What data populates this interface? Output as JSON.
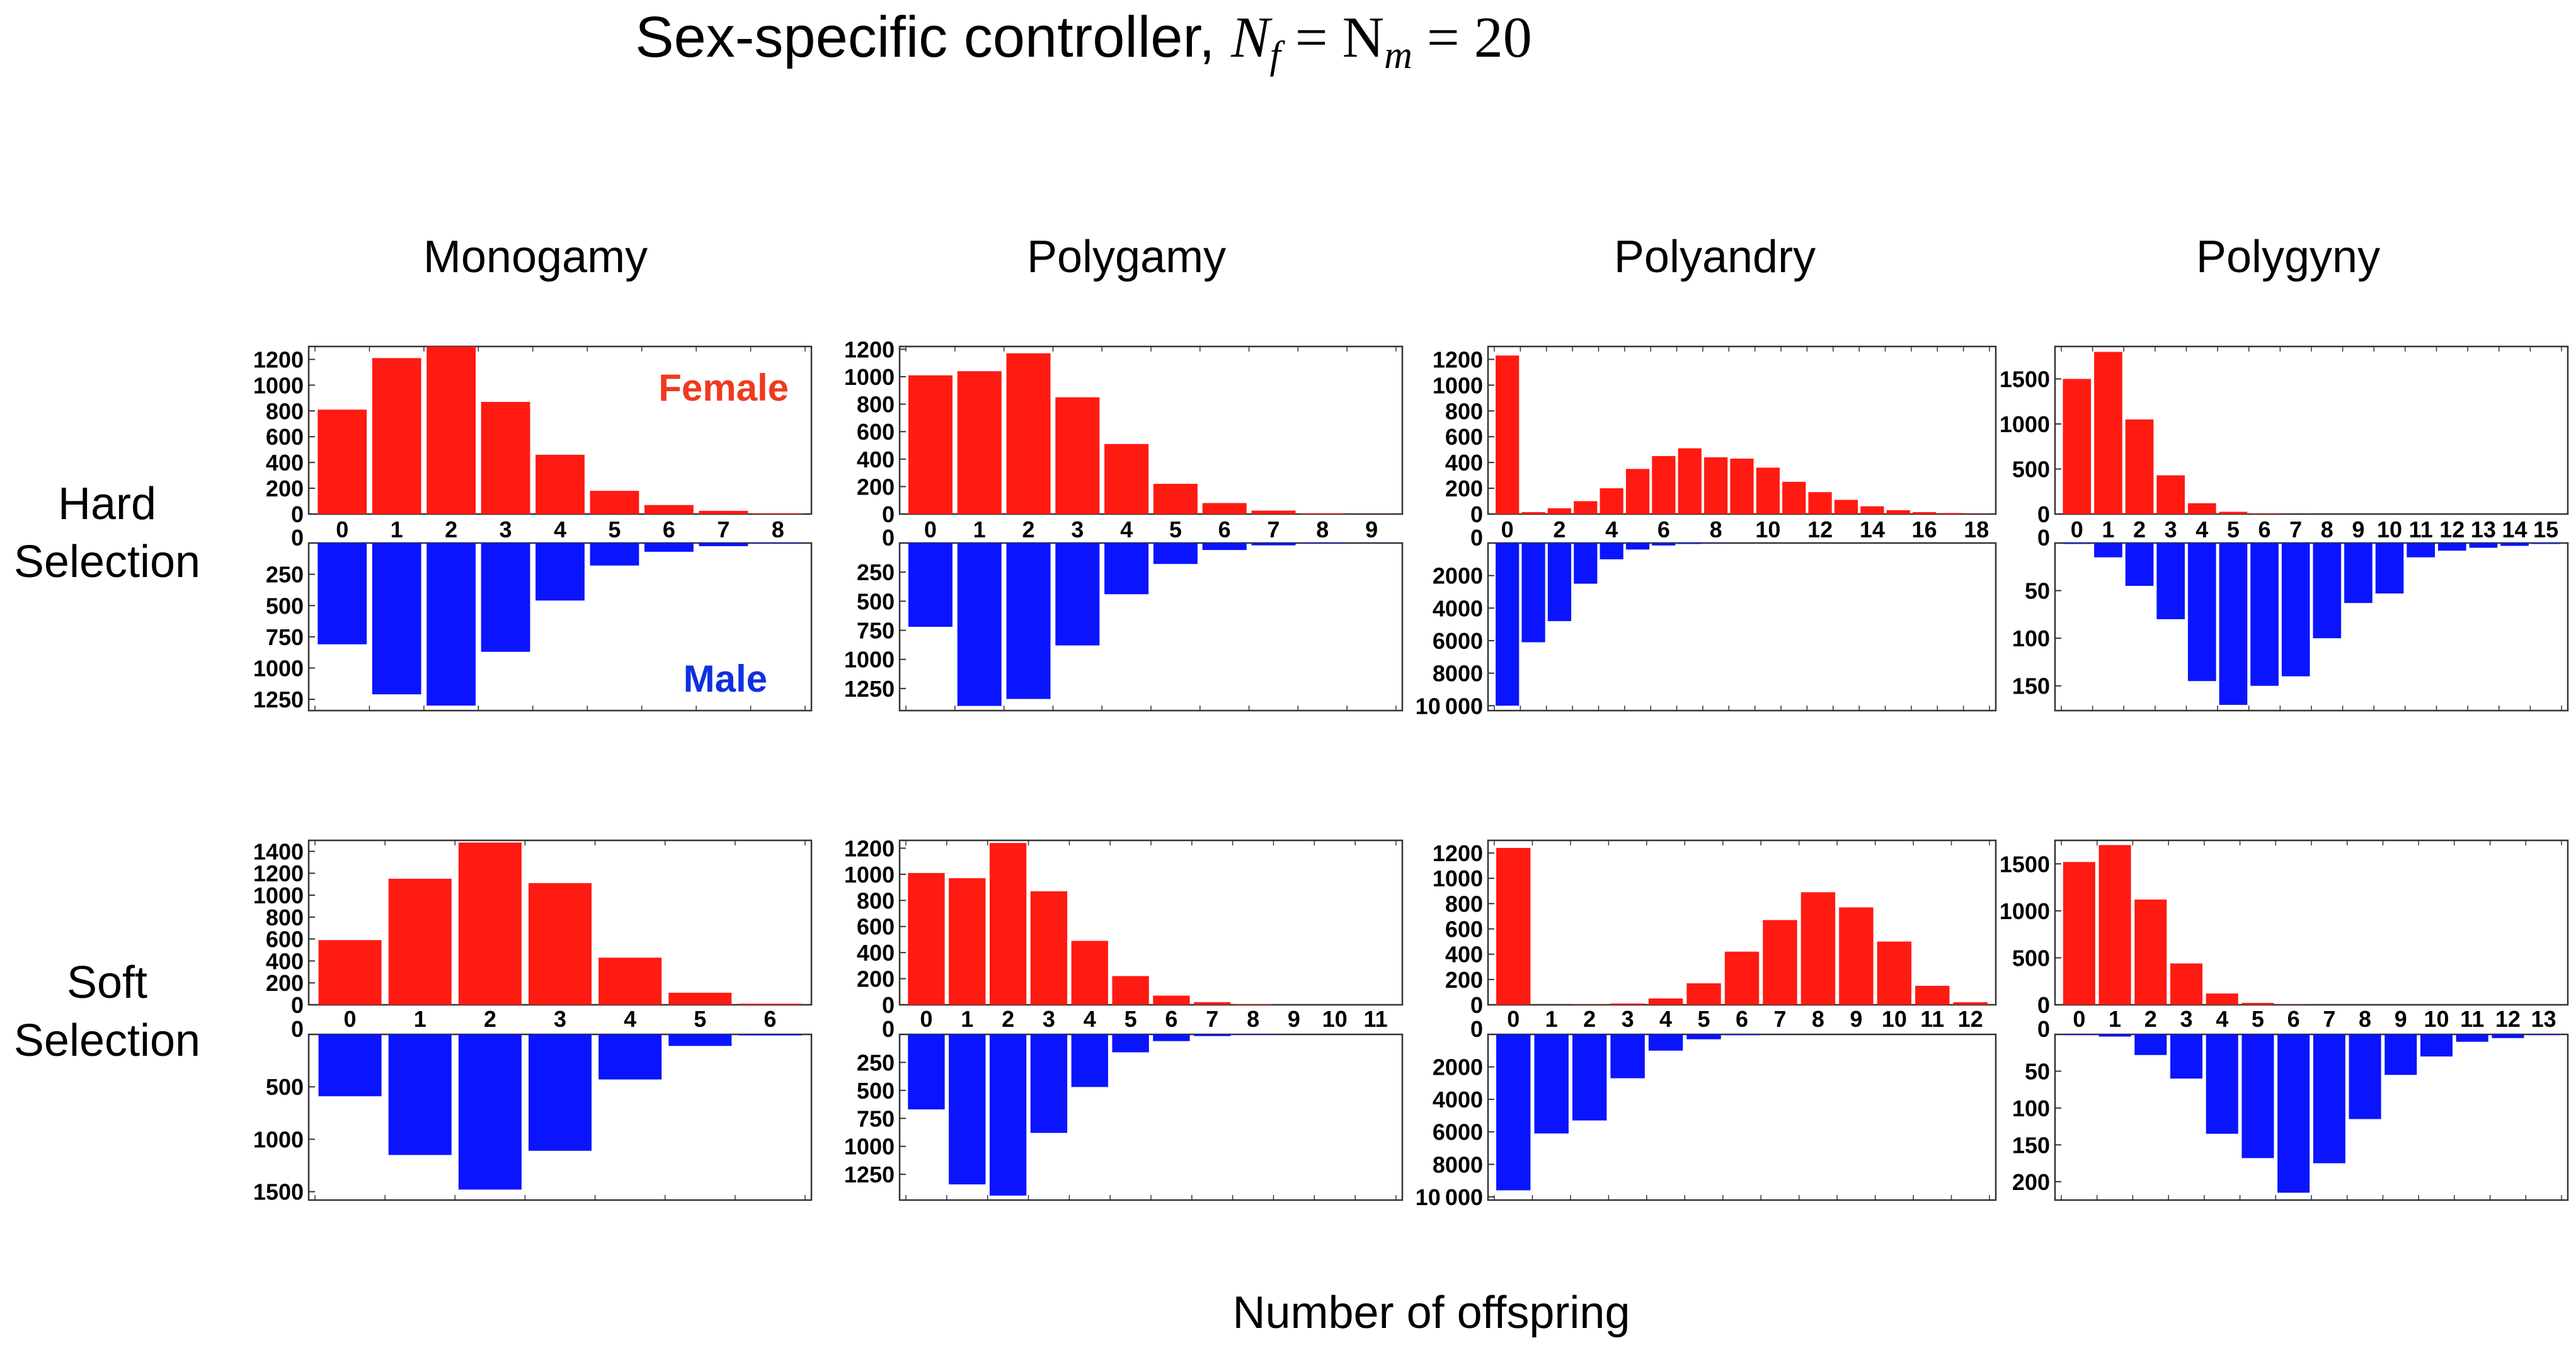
{
  "title": {
    "text": "Sex-specific controller, ",
    "math_nf": "N",
    "sub_f": "f",
    "math_rest": " = N",
    "sub_m": "m",
    "math_end": " = 20"
  },
  "columns": [
    "Monogamy",
    "Polygamy",
    "Polyandry",
    "Polygyny"
  ],
  "rows": [
    {
      "line1": "Hard",
      "line2": "Selection"
    },
    {
      "line1": "Soft",
      "line2": "Selection"
    }
  ],
  "xlabel": "Number of offspring",
  "legend": {
    "female": "Female",
    "male": "Male"
  },
  "colors": {
    "female": "#ff1a12",
    "male": "#0a14ff",
    "female_text": "#f03a1e",
    "male_text": "#1030e0"
  },
  "chart_data": [
    {
      "type": "bar",
      "selection": "Hard Selection",
      "system": "Monogamy",
      "female": {
        "categories": [
          0,
          1,
          2,
          3,
          4,
          5,
          6,
          7,
          8
        ],
        "values": [
          810,
          1210,
          1300,
          870,
          460,
          180,
          70,
          25,
          5
        ],
        "ylim": [
          0,
          1300
        ],
        "yticks": [
          0,
          200,
          400,
          600,
          800,
          1000,
          1200
        ],
        "xticks": [
          0,
          1,
          2,
          3,
          4,
          5,
          6,
          7,
          8
        ]
      },
      "male": {
        "categories": [
          0,
          1,
          2,
          3,
          4,
          5,
          6,
          7,
          8
        ],
        "values": [
          810,
          1210,
          1300,
          870,
          460,
          180,
          70,
          25,
          5
        ],
        "ylim": [
          0,
          1340
        ],
        "yticks": [
          0,
          250,
          500,
          750,
          1000,
          1250
        ],
        "xticks": []
      }
    },
    {
      "type": "bar",
      "selection": "Hard Selection",
      "system": "Polygamy",
      "female": {
        "categories": [
          0,
          1,
          2,
          3,
          4,
          5,
          6,
          7,
          8,
          9
        ],
        "values": [
          1010,
          1040,
          1170,
          850,
          510,
          220,
          80,
          25,
          5,
          1
        ],
        "ylim": [
          0,
          1220
        ],
        "yticks": [
          0,
          200,
          400,
          600,
          800,
          1000,
          1200
        ],
        "xticks": [
          0,
          1,
          2,
          3,
          4,
          5,
          6,
          7,
          8,
          9
        ]
      },
      "male": {
        "categories": [
          0,
          1,
          2,
          3,
          4,
          5,
          6,
          7,
          8,
          9
        ],
        "values": [
          720,
          1400,
          1340,
          880,
          440,
          180,
          60,
          20,
          5,
          1
        ],
        "ylim": [
          0,
          1440
        ],
        "yticks": [
          0,
          250,
          500,
          750,
          1000,
          1250
        ],
        "xticks": []
      }
    },
    {
      "type": "bar",
      "selection": "Hard Selection",
      "system": "Polyandry",
      "female": {
        "categories": [
          0,
          1,
          2,
          3,
          4,
          5,
          6,
          7,
          8,
          9,
          10,
          11,
          12,
          13,
          14,
          15,
          16,
          17,
          18
        ],
        "values": [
          1230,
          15,
          45,
          100,
          200,
          350,
          450,
          510,
          440,
          430,
          360,
          250,
          170,
          110,
          60,
          30,
          15,
          8,
          2
        ],
        "ylim": [
          0,
          1300
        ],
        "yticks": [
          0,
          200,
          400,
          600,
          800,
          1000,
          1200
        ],
        "xticks": [
          0,
          2,
          4,
          6,
          8,
          10,
          12,
          14,
          16,
          18
        ]
      },
      "male": {
        "categories": [
          0,
          1,
          2,
          3,
          4,
          5,
          6,
          7,
          8,
          9,
          10,
          11,
          12,
          13,
          14,
          15,
          16,
          17,
          18
        ],
        "values": [
          10000,
          6100,
          4800,
          2500,
          1000,
          400,
          150,
          60,
          20,
          5,
          1,
          0,
          0,
          0,
          0,
          0,
          0,
          0,
          0
        ],
        "ylim": [
          0,
          10300
        ],
        "yticks": [
          0,
          2000,
          4000,
          6000,
          8000,
          10000
        ],
        "xticks": []
      }
    },
    {
      "type": "bar",
      "selection": "Hard Selection",
      "system": "Polygyny",
      "female": {
        "categories": [
          0,
          1,
          2,
          3,
          4,
          5,
          6,
          7,
          8,
          9,
          10,
          11,
          12,
          13,
          14,
          15
        ],
        "values": [
          1500,
          1800,
          1050,
          430,
          120,
          25,
          5,
          1,
          0,
          0,
          0,
          0,
          0,
          0,
          0,
          0
        ],
        "ylim": [
          0,
          1860
        ],
        "yticks": [
          0,
          500,
          1000,
          1500
        ],
        "xticks": [
          0,
          1,
          2,
          3,
          4,
          5,
          6,
          7,
          8,
          9,
          10,
          11,
          12,
          13,
          14,
          15
        ]
      },
      "male": {
        "categories": [
          0,
          1,
          2,
          3,
          4,
          5,
          6,
          7,
          8,
          9,
          10,
          11,
          12,
          13,
          14,
          15
        ],
        "values": [
          1,
          15,
          45,
          80,
          145,
          170,
          150,
          140,
          100,
          63,
          53,
          15,
          8,
          5,
          3,
          1
        ],
        "ylim": [
          0,
          176
        ],
        "yticks": [
          0,
          50,
          100,
          150
        ],
        "xticks": []
      }
    },
    {
      "type": "bar",
      "selection": "Soft Selection",
      "system": "Monogamy",
      "female": {
        "categories": [
          0,
          1,
          2,
          3,
          4,
          5,
          6
        ],
        "values": [
          590,
          1150,
          1480,
          1110,
          430,
          110,
          10
        ],
        "ylim": [
          0,
          1500
        ],
        "yticks": [
          0,
          200,
          400,
          600,
          800,
          1000,
          1200,
          1400
        ],
        "xticks": [
          0,
          1,
          2,
          3,
          4,
          5,
          6
        ]
      },
      "male": {
        "categories": [
          0,
          1,
          2,
          3,
          4,
          5,
          6
        ],
        "values": [
          590,
          1150,
          1480,
          1110,
          430,
          110,
          10
        ],
        "ylim": [
          0,
          1580
        ],
        "yticks": [
          0,
          500,
          1000,
          1500
        ],
        "xticks": []
      }
    },
    {
      "type": "bar",
      "selection": "Soft Selection",
      "system": "Polygamy",
      "female": {
        "categories": [
          0,
          1,
          2,
          3,
          4,
          5,
          6,
          7,
          8,
          9,
          10,
          11
        ],
        "values": [
          1010,
          970,
          1240,
          870,
          490,
          220,
          70,
          20,
          5,
          1,
          0,
          0
        ],
        "ylim": [
          0,
          1260
        ],
        "yticks": [
          0,
          200,
          400,
          600,
          800,
          1000,
          1200
        ],
        "xticks": [
          0,
          1,
          2,
          3,
          4,
          5,
          6,
          7,
          8,
          9,
          10,
          11
        ]
      },
      "male": {
        "categories": [
          0,
          1,
          2,
          3,
          4,
          5,
          6,
          7,
          8,
          9,
          10,
          11
        ],
        "values": [
          670,
          1340,
          1440,
          880,
          470,
          160,
          60,
          15,
          5,
          1,
          0,
          0
        ],
        "ylim": [
          0,
          1480
        ],
        "yticks": [
          0,
          250,
          500,
          750,
          1000,
          1250
        ],
        "xticks": []
      }
    },
    {
      "type": "bar",
      "selection": "Soft Selection",
      "system": "Polyandry",
      "female": {
        "categories": [
          0,
          1,
          2,
          3,
          4,
          5,
          6,
          7,
          8,
          9,
          10,
          11,
          12
        ],
        "values": [
          1240,
          1,
          3,
          10,
          50,
          170,
          420,
          670,
          890,
          770,
          500,
          150,
          20
        ],
        "ylim": [
          0,
          1300
        ],
        "yticks": [
          0,
          200,
          400,
          600,
          800,
          1000,
          1200
        ],
        "xticks": [
          0,
          1,
          2,
          3,
          4,
          5,
          6,
          7,
          8,
          9,
          10,
          11,
          12
        ]
      },
      "male": {
        "categories": [
          0,
          1,
          2,
          3,
          4,
          5,
          6,
          7,
          8,
          9,
          10,
          11,
          12
        ],
        "values": [
          9600,
          6100,
          5300,
          2700,
          1000,
          300,
          50,
          10,
          2,
          0,
          0,
          0,
          0
        ],
        "ylim": [
          0,
          10200
        ],
        "yticks": [
          0,
          2000,
          4000,
          6000,
          8000,
          10000
        ],
        "xticks": []
      }
    },
    {
      "type": "bar",
      "selection": "Soft Selection",
      "system": "Polygyny",
      "female": {
        "categories": [
          0,
          1,
          2,
          3,
          4,
          5,
          6,
          7,
          8,
          9,
          10,
          11,
          12,
          13
        ],
        "values": [
          1520,
          1700,
          1120,
          440,
          120,
          20,
          3,
          1,
          0,
          0,
          0,
          0,
          0,
          0
        ],
        "ylim": [
          0,
          1750
        ],
        "yticks": [
          0,
          500,
          1000,
          1500
        ],
        "xticks": [
          0,
          1,
          2,
          3,
          4,
          5,
          6,
          7,
          8,
          9,
          10,
          11,
          12,
          13
        ]
      },
      "male": {
        "categories": [
          0,
          1,
          2,
          3,
          4,
          5,
          6,
          7,
          8,
          9,
          10,
          11,
          12,
          13
        ],
        "values": [
          1,
          3,
          28,
          60,
          135,
          168,
          215,
          175,
          115,
          55,
          30,
          10,
          5,
          1
        ],
        "ylim": [
          0,
          225
        ],
        "yticks": [
          0,
          50,
          100,
          150,
          200
        ],
        "xticks": []
      }
    }
  ]
}
